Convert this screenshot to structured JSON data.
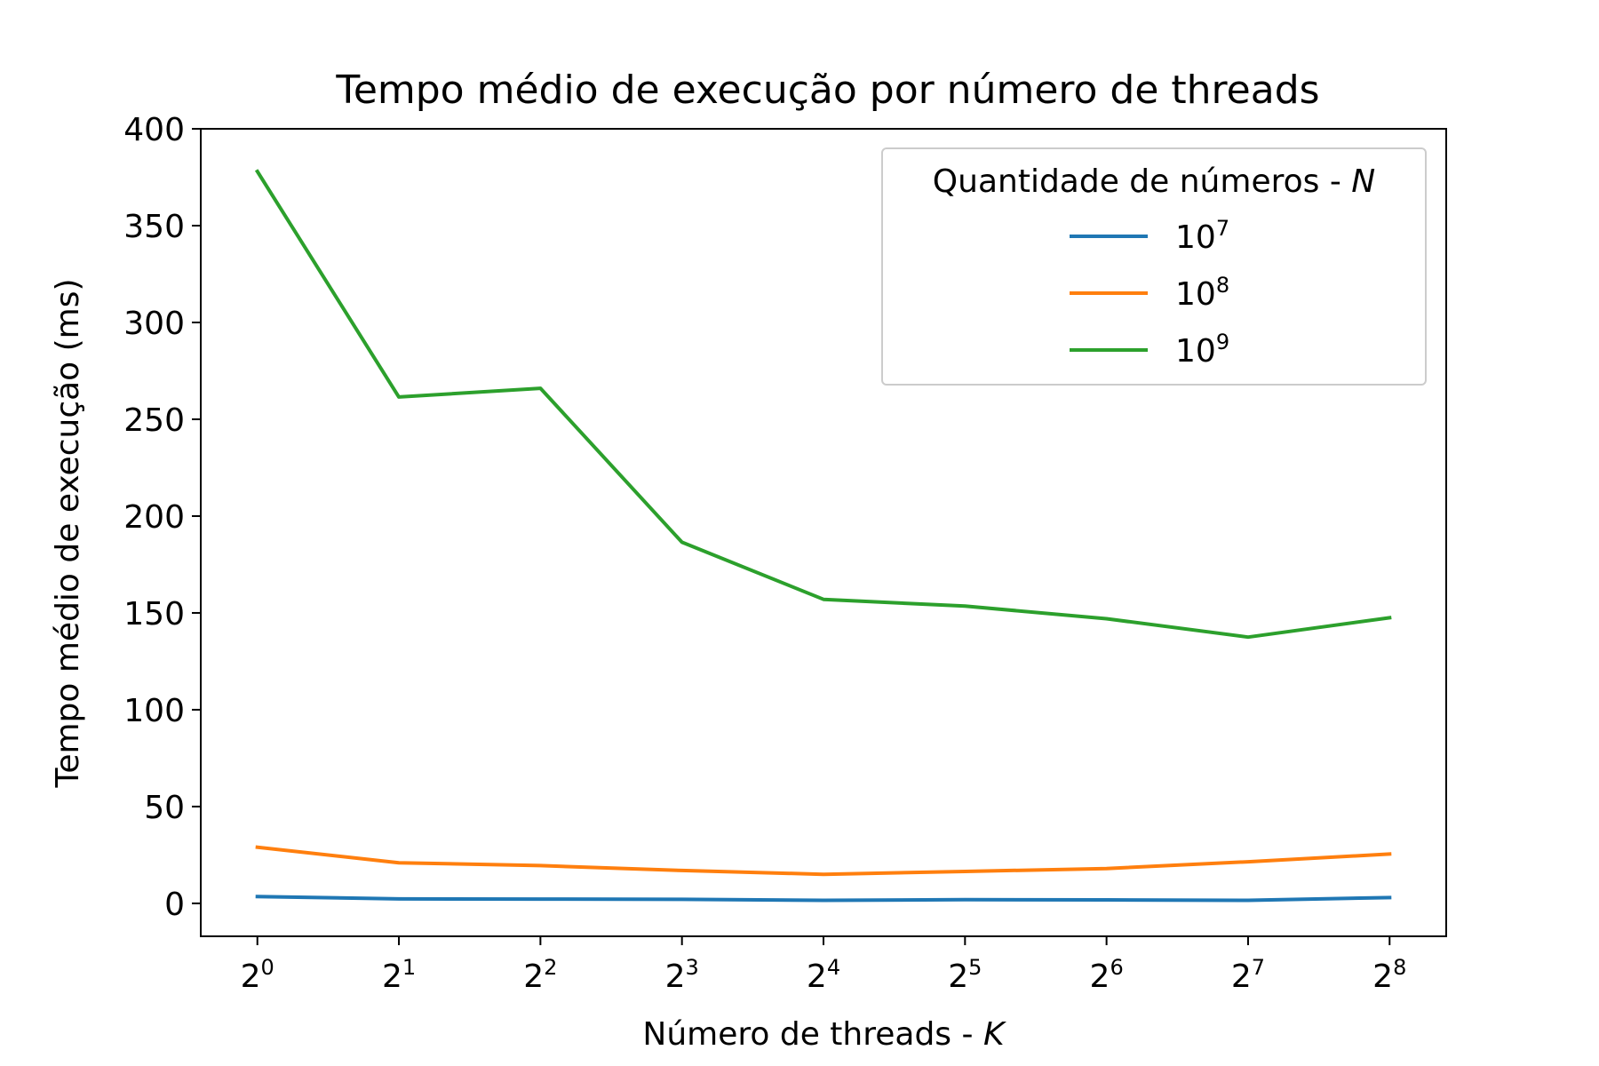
{
  "chart_data": {
    "type": "line",
    "title": "Tempo médio de execução por número de threads",
    "xlabel": "Número de threads - ",
    "xlabel_var": "K",
    "ylabel": "Tempo médio de execução (ms)",
    "x": [
      0,
      1,
      2,
      3,
      4,
      5,
      6,
      7,
      8
    ],
    "x_tick_labels": [
      {
        "base": "2",
        "exp": "0"
      },
      {
        "base": "2",
        "exp": "1"
      },
      {
        "base": "2",
        "exp": "2"
      },
      {
        "base": "2",
        "exp": "3"
      },
      {
        "base": "2",
        "exp": "4"
      },
      {
        "base": "2",
        "exp": "5"
      },
      {
        "base": "2",
        "exp": "6"
      },
      {
        "base": "2",
        "exp": "7"
      },
      {
        "base": "2",
        "exp": "8"
      }
    ],
    "y_ticks": [
      0,
      50,
      100,
      150,
      200,
      250,
      300,
      350,
      400
    ],
    "ylim": [
      -17,
      400
    ],
    "xlim": [
      -0.4,
      8.4
    ],
    "grid": false,
    "legend": {
      "title": "Quantidade de números - ",
      "title_var": "N",
      "placement": "top-right"
    },
    "series": [
      {
        "name_base": "10",
        "name_exp": "7",
        "color": "#1f77b4",
        "values": [
          3.5,
          2.3,
          2.2,
          2.1,
          1.6,
          1.9,
          1.8,
          1.6,
          3.0
        ]
      },
      {
        "name_base": "10",
        "name_exp": "8",
        "color": "#ff7f0e",
        "values": [
          29,
          21,
          19.5,
          17,
          15,
          16.5,
          18,
          21.5,
          25.5
        ]
      },
      {
        "name_base": "10",
        "name_exp": "9",
        "color": "#2ca02c",
        "values": [
          378,
          261.5,
          266,
          186.5,
          157,
          153.5,
          147,
          137.5,
          147.5
        ]
      }
    ]
  }
}
